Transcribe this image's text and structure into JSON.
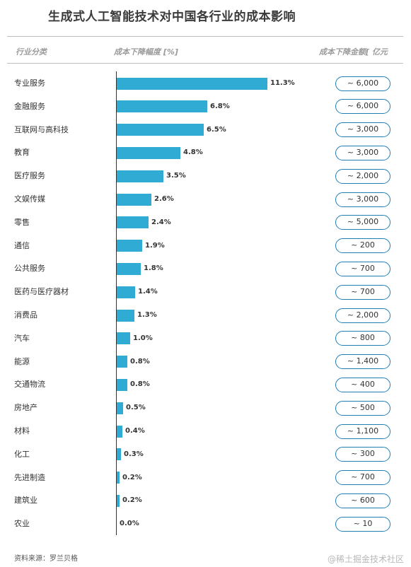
{
  "title": "生成式人工智能技术对中国各行业的成本影响",
  "headers": {
    "category": "行业分类",
    "percent": "成本下降幅度 [%]",
    "amount": "成本下降金额[ 亿元"
  },
  "chart_data": {
    "type": "bar",
    "orientation": "horizontal",
    "title": "生成式人工智能技术对中国各行业的成本影响",
    "xlabel": "成本下降幅度 [%]",
    "ylabel": "行业分类",
    "xlim": [
      0,
      11.3
    ],
    "grid": false,
    "categories": [
      "专业服务",
      "金融服务",
      "互联网与高科技",
      "教育",
      "医疗服务",
      "文娱传媒",
      "零售",
      "通信",
      "公共服务",
      "医药与医疗器材",
      "消费品",
      "汽车",
      "能源",
      "交通物流",
      "房地产",
      "材料",
      "化工",
      "先进制造",
      "建筑业",
      "农业"
    ],
    "values": [
      11.3,
      6.8,
      6.5,
      4.8,
      3.5,
      2.6,
      2.4,
      1.9,
      1.8,
      1.4,
      1.3,
      1.0,
      0.8,
      0.8,
      0.5,
      0.4,
      0.3,
      0.2,
      0.2,
      0.0
    ],
    "value_labels": [
      "11.3%",
      "6.8%",
      "6.5%",
      "4.8%",
      "3.5%",
      "2.6%",
      "2.4%",
      "1.9%",
      "1.8%",
      "1.4%",
      "1.3%",
      "1.0%",
      "0.8%",
      "0.8%",
      "0.5%",
      "0.4%",
      "0.3%",
      "0.2%",
      "0.2%",
      "0.0%"
    ],
    "amounts": [
      "~ 6,000",
      "~ 6,000",
      "~ 3,000",
      "~ 3,000",
      "~ 2,000",
      "~ 3,000",
      "~ 5,000",
      "~ 200",
      "~ 700",
      "~ 700",
      "~ 2,000",
      "~ 800",
      "~ 1,400",
      "~ 400",
      "~ 500",
      "~ 1,100",
      "~ 300",
      "~ 700",
      "~ 600",
      "~ 10"
    ],
    "bar_color": "#2fabd4",
    "pill_border_color": "#1f7fb5"
  },
  "footer": "资料来源：罗兰贝格",
  "watermark": "@稀土掘金技术社区"
}
